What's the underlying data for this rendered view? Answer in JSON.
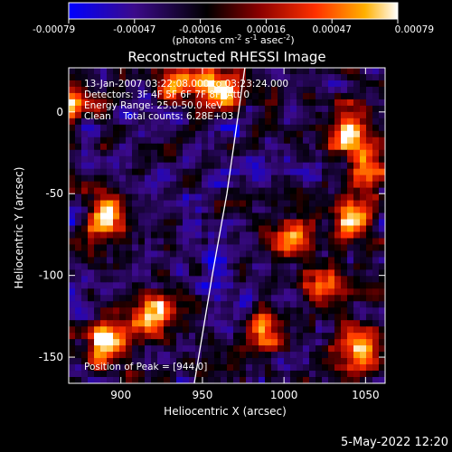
{
  "chart_data": {
    "type": "heatmap",
    "title": "Reconstructed RHESSI Image",
    "xlabel": "Heliocentric X (arcsec)",
    "ylabel": "Heliocentric Y (arcsec)",
    "xlim": [
      868,
      1062
    ],
    "ylim": [
      -166,
      27
    ],
    "x_ticks": [
      900,
      950,
      1000,
      1050
    ],
    "y_ticks": [
      0,
      -50,
      -100,
      -150
    ],
    "colorbar": {
      "ticks": [
        "-0.00079",
        "-0.00047",
        "-0.00016",
        "0.00016",
        "0.00047",
        "0.00079"
      ],
      "unit_label": "(photons cm-2 s-1 asec-2)",
      "range": [
        -0.00079,
        0.00079
      ],
      "colormap": [
        "#0000ff",
        "#3b0a8a",
        "#000000",
        "#8b0000",
        "#ff3000",
        "#ffb000",
        "#ffffff"
      ]
    },
    "annotations": [
      "13-Jan-2007 03:22:08.000 to 03:23:24.000",
      "Detectors: 3F 4F 5F 6F 7F 8F, Att 0",
      "Energy Range: 25.0-50.0 keV",
      "Clean    Total counts: 6.28E+03"
    ],
    "peak_label": "Position of Peak = [944,0]",
    "limb_curve": [
      [
        976,
        27
      ],
      [
        965,
        -50
      ],
      [
        956,
        -100
      ],
      [
        945,
        -166
      ]
    ],
    "bright_regions": [
      {
        "x": 960,
        "y": 15,
        "level": 0.95
      },
      {
        "x": 930,
        "y": 18,
        "level": 0.8
      },
      {
        "x": 890,
        "y": -65,
        "level": 0.95
      },
      {
        "x": 1040,
        "y": -10,
        "level": 0.85
      },
      {
        "x": 1050,
        "y": -35,
        "level": 0.7
      },
      {
        "x": 1005,
        "y": -75,
        "level": 0.75
      },
      {
        "x": 1040,
        "y": -65,
        "level": 0.8
      },
      {
        "x": 920,
        "y": -125,
        "level": 0.85
      },
      {
        "x": 890,
        "y": -140,
        "level": 0.9
      },
      {
        "x": 1045,
        "y": -145,
        "level": 0.85
      },
      {
        "x": 1025,
        "y": -105,
        "level": 0.6
      },
      {
        "x": 990,
        "y": -135,
        "level": 0.6
      },
      {
        "x": 870,
        "y": 5,
        "level": 0.7
      }
    ]
  },
  "timestamp": "5-May-2022 12:20"
}
